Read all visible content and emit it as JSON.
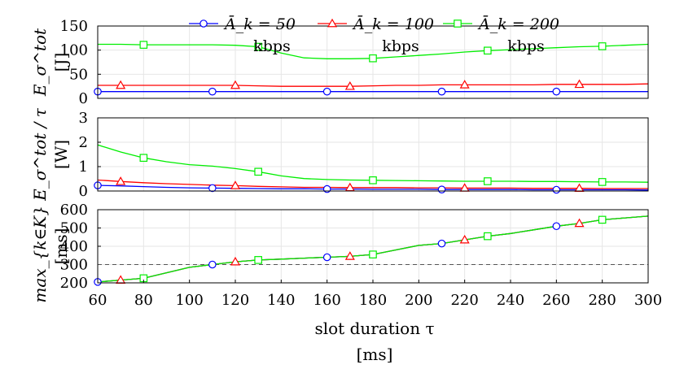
{
  "chart_data": {
    "type": "line",
    "x": [
      60,
      70,
      80,
      90,
      100,
      110,
      120,
      130,
      140,
      150,
      160,
      170,
      180,
      190,
      200,
      210,
      220,
      230,
      240,
      250,
      260,
      270,
      280,
      290,
      300
    ],
    "xlim": [
      60,
      300
    ],
    "xticks": [
      60,
      80,
      100,
      120,
      140,
      160,
      180,
      200,
      220,
      240,
      260,
      280,
      300
    ],
    "xlabel": "slot duration τ",
    "xunit": "[ms]",
    "legend": {
      "placement": "top-center",
      "unit": "kbps",
      "entries": [
        {
          "label": "Ā_k = 50",
          "color": "#0000ff",
          "marker": "circle"
        },
        {
          "label": "Ā_k = 100",
          "color": "#ff0000",
          "marker": "triangle"
        },
        {
          "label": "Ā_k = 200",
          "color": "#00ee00",
          "marker": "square"
        }
      ]
    },
    "panels": [
      {
        "ylabel": "E_σ^tot",
        "yunit": "[J]",
        "ylim": [
          0,
          150
        ],
        "yticks": [
          0,
          50,
          100,
          150
        ],
        "series": [
          {
            "name": "Ā_k = 50",
            "values": [
              14,
              14,
              14,
              14,
              14,
              14,
              14,
              14,
              14,
              14,
              14,
              14,
              14,
              14,
              14,
              14,
              14,
              14,
              14,
              14,
              14,
              14,
              14,
              14,
              14
            ]
          },
          {
            "name": "Ā_k = 100",
            "values": [
              27,
              27,
              27,
              27,
              27,
              27,
              27,
              26,
              25,
              25,
              25,
              25,
              26,
              27,
              27,
              28,
              28,
              28,
              28,
              28,
              29,
              29,
              29,
              29,
              30
            ]
          },
          {
            "name": "Ā_k = 200",
            "values": [
              112,
              112,
              111,
              111,
              111,
              111,
              110,
              107,
              94,
              84,
              82,
              82,
              83,
              86,
              89,
              92,
              96,
              99,
              101,
              103,
              105,
              107,
              108,
              110,
              112
            ]
          }
        ]
      },
      {
        "ylabel": "E_σ^tot / τ",
        "yunit": "[W]",
        "ylim": [
          0,
          3
        ],
        "yticks": [
          0,
          1,
          2,
          3
        ],
        "series": [
          {
            "name": "Ā_k = 50",
            "values": [
              0.23,
              0.21,
              0.18,
              0.15,
              0.13,
              0.12,
              0.11,
              0.1,
              0.09,
              0.09,
              0.08,
              0.08,
              0.07,
              0.07,
              0.07,
              0.06,
              0.06,
              0.06,
              0.06,
              0.05,
              0.05,
              0.05,
              0.05,
              0.05,
              0.04
            ]
          },
          {
            "name": "Ā_k = 100",
            "values": [
              0.45,
              0.39,
              0.34,
              0.3,
              0.27,
              0.24,
              0.22,
              0.19,
              0.17,
              0.15,
              0.15,
              0.14,
              0.14,
              0.14,
              0.13,
              0.13,
              0.12,
              0.12,
              0.12,
              0.11,
              0.11,
              0.11,
              0.1,
              0.1,
              0.1
            ]
          },
          {
            "name": "Ā_k = 200",
            "values": [
              1.89,
              1.6,
              1.36,
              1.2,
              1.08,
              1.02,
              0.92,
              0.79,
              0.62,
              0.51,
              0.47,
              0.45,
              0.44,
              0.43,
              0.42,
              0.41,
              0.4,
              0.4,
              0.4,
              0.39,
              0.39,
              0.38,
              0.37,
              0.37,
              0.36
            ]
          }
        ]
      },
      {
        "ylabel": "max_{k∈K} L",
        "yunit": "[ms]",
        "ylim": [
          200,
          600
        ],
        "yticks": [
          200,
          300,
          400,
          500,
          600
        ],
        "hline": 300,
        "series": [
          {
            "name": "Ā_k = 50",
            "values": [
              205,
              215,
              225,
              255,
              285,
              300,
              315,
              325,
              330,
              335,
              340,
              345,
              355,
              380,
              405,
              415,
              435,
              455,
              470,
              490,
              510,
              525,
              545,
              555,
              565
            ]
          },
          {
            "name": "Ā_k = 100",
            "values": [
              205,
              215,
              225,
              255,
              285,
              300,
              315,
              325,
              330,
              335,
              340,
              345,
              355,
              380,
              405,
              415,
              435,
              455,
              470,
              490,
              510,
              525,
              545,
              555,
              565
            ]
          },
          {
            "name": "Ā_k = 200",
            "values": [
              205,
              215,
              225,
              255,
              285,
              300,
              315,
              325,
              330,
              335,
              340,
              345,
              355,
              380,
              405,
              415,
              435,
              455,
              470,
              490,
              510,
              525,
              545,
              555,
              565
            ]
          }
        ]
      }
    ],
    "markers": {
      "Ā_k = 50": [
        60,
        110,
        160,
        210,
        260
      ],
      "Ā_k = 100": [
        70,
        120,
        170,
        220,
        270
      ],
      "Ā_k = 200": [
        80,
        130,
        180,
        230,
        280
      ]
    }
  }
}
